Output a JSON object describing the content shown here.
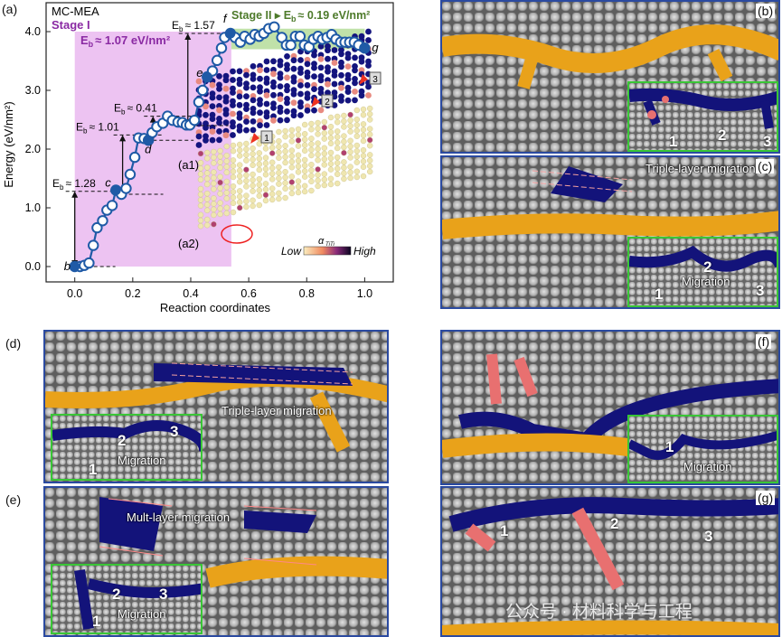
{
  "panel_labels": {
    "a": "(a)",
    "b": "(b)",
    "c": "(c)",
    "d": "(d)",
    "e": "(e)",
    "f": "(f)",
    "g": "(g)"
  },
  "chart_data": {
    "type": "scatter",
    "xlabel": "Reaction coordinates",
    "ylabel": "Energy (eV/nm²)",
    "xlim": [
      -0.1,
      1.1
    ],
    "ylim": [
      -0.3,
      4.6
    ],
    "xticks": [
      "0.0",
      "0.2",
      "0.4",
      "0.6",
      "0.8",
      "1.0"
    ],
    "yticks": [
      "0.0",
      "1.0",
      "2.0",
      "3.0",
      "4.0"
    ],
    "title": "MC-MEA",
    "colors": {
      "line": "#1f5aa6",
      "stage1": "#eab8f0",
      "stage2": "#b5dc9a",
      "stage1_text": "#8a2aa3",
      "stage2_text": "#4d7a2a"
    },
    "x": [
      0,
      0.018,
      0.033,
      0.049,
      0.064,
      0.077,
      0.096,
      0.111,
      0.129,
      0.142,
      0.161,
      0.177,
      0.191,
      0.207,
      0.22,
      0.239,
      0.254,
      0.267,
      0.283,
      0.304,
      0.32,
      0.337,
      0.356,
      0.371,
      0.385,
      0.397,
      0.413,
      0.428,
      0.441,
      0.457,
      0.475,
      0.491,
      0.506,
      0.517,
      0.537,
      0.553,
      0.571,
      0.586,
      0.605,
      0.621,
      0.636,
      0.652,
      0.669,
      0.688,
      0.714,
      0.73,
      0.745,
      0.761,
      0.777,
      0.792,
      0.808,
      0.823,
      0.839,
      0.854,
      0.87,
      0.886,
      0.901,
      0.917,
      0.932,
      0.948,
      0.964,
      0.979,
      1.0
    ],
    "y": [
      0,
      0,
      0.02,
      0.06,
      0.36,
      0.66,
      0.78,
      0.96,
      1.04,
      1.3,
      1.23,
      1.33,
      1.57,
      1.86,
      2.19,
      2.18,
      2.15,
      2.28,
      2.38,
      2.44,
      2.56,
      2.49,
      2.46,
      2.45,
      2.41,
      2.41,
      2.49,
      2.8,
      3.0,
      3.23,
      3.33,
      3.51,
      3.72,
      3.9,
      3.97,
      3.9,
      3.82,
      3.92,
      3.87,
      3.95,
      3.92,
      3.97,
      4.05,
      4.08,
      3.9,
      3.77,
      3.77,
      3.92,
      3.92,
      3.77,
      3.74,
      3.87,
      3.92,
      3.87,
      3.9,
      3.95,
      3.87,
      3.82,
      3.82,
      3.82,
      3.82,
      3.77,
      3.72
    ],
    "states": [
      {
        "label": "b",
        "x": 0,
        "y": 0
      },
      {
        "label": "c",
        "x": 0.142,
        "y": 1.3
      },
      {
        "label": "d",
        "x": 0.254,
        "y": 2.15
      },
      {
        "label": "e",
        "x": 0.457,
        "y": 3.23
      },
      {
        "label": "f",
        "x": 0.537,
        "y": 3.97
      },
      {
        "label": "g",
        "x": 1.0,
        "y": 3.72
      }
    ],
    "stage1": {
      "name": "Stage I",
      "eb": "≈ 1.07 eV/nm²",
      "x_range": [
        0,
        0.54
      ]
    },
    "stage2": {
      "name": "Stage II",
      "eb": "≈ 0.19 eV/nm²",
      "x_range": [
        0.54,
        1.0
      ]
    },
    "barriers": [
      {
        "value": "≈ 1.28",
        "from": 0,
        "to": 1.28
      },
      {
        "value": "≈ 1.01",
        "from": 1.23,
        "to": 2.24
      },
      {
        "value": "≈ 0.41",
        "from": 2.15,
        "to": 2.56
      },
      {
        "value": "≈ 1.57",
        "from": 2.4,
        "to": 3.97
      }
    ],
    "insets": {
      "a1": "(a1)",
      "a2": "(a2)",
      "a1_markers": [
        "1",
        "2",
        "3"
      ],
      "colorbar": {
        "title": "α",
        "sub": "TiTi",
        "low": "Low",
        "high": "High"
      }
    }
  },
  "panels": {
    "b": {
      "markers": [
        "1",
        "2",
        "3"
      ]
    },
    "c": {
      "annotation": "Triple-layer migration",
      "markers": [
        "1",
        "2",
        "3"
      ],
      "inset_text": "Migration"
    },
    "d": {
      "annotation": "Triple-layer migration",
      "markers": [
        "1",
        "2",
        "3"
      ],
      "inset_text": "Migration"
    },
    "e": {
      "annotation": "Mult-layer migration",
      "markers": [
        "1",
        "2",
        "3"
      ],
      "inset_text": "Migration"
    },
    "f": {
      "markers": [
        "1"
      ],
      "inset_text": "Migration"
    },
    "g": {
      "markers": [
        "1",
        "2",
        "3"
      ],
      "watermark": "公众号 · 材料科学与工程"
    }
  }
}
